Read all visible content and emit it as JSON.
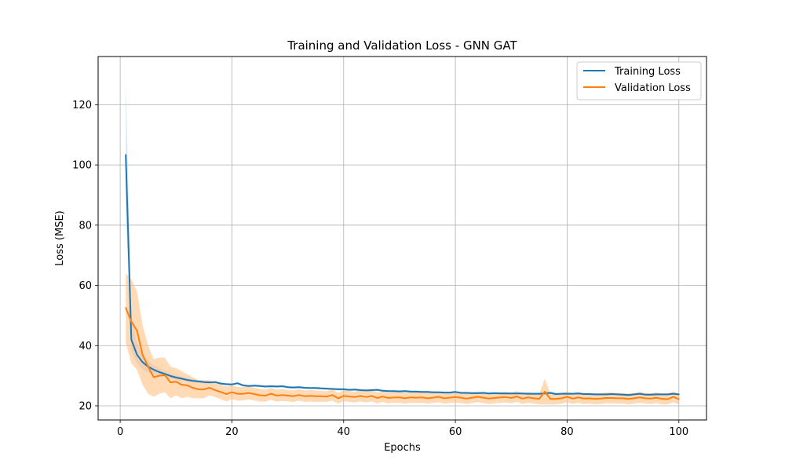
{
  "chart_data": {
    "type": "line",
    "title": "Training and Validation Loss - GNN GAT",
    "xlabel": "Epochs",
    "ylabel": "Loss (MSE)",
    "xlim": [
      -3.95,
      104.95
    ],
    "ylim": [
      15.3,
      136.0
    ],
    "xticks": [
      0,
      20,
      40,
      60,
      80,
      100
    ],
    "yticks": [
      20,
      40,
      60,
      80,
      100,
      120
    ],
    "xtick_labels": [
      "0",
      "20",
      "40",
      "60",
      "80",
      "100"
    ],
    "ytick_labels": [
      "20",
      "40",
      "60",
      "80",
      "100",
      "120"
    ],
    "grid": true,
    "legend": {
      "placement": "top-right",
      "entries": [
        "Training Loss",
        "Validation Loss"
      ]
    },
    "x": [
      1,
      2,
      3,
      4,
      5,
      6,
      7,
      8,
      9,
      10,
      11,
      12,
      13,
      14,
      15,
      16,
      17,
      18,
      19,
      20,
      21,
      22,
      23,
      24,
      25,
      26,
      27,
      28,
      29,
      30,
      31,
      32,
      33,
      34,
      35,
      36,
      37,
      38,
      39,
      40,
      41,
      42,
      43,
      44,
      45,
      46,
      47,
      48,
      49,
      50,
      51,
      52,
      53,
      54,
      55,
      56,
      57,
      58,
      59,
      60,
      61,
      62,
      63,
      64,
      65,
      66,
      67,
      68,
      69,
      70,
      71,
      72,
      73,
      74,
      75,
      76,
      77,
      78,
      79,
      80,
      81,
      82,
      83,
      84,
      85,
      86,
      87,
      88,
      89,
      90,
      91,
      92,
      93,
      94,
      95,
      96,
      97,
      98,
      99,
      100
    ],
    "series": [
      {
        "name": "Training Loss",
        "color": "#1f77b4",
        "band_color": "#aec7e8",
        "values": [
          103.3,
          42.0,
          37.0,
          34.5,
          33.0,
          32.0,
          31.2,
          30.6,
          29.9,
          29.4,
          29.0,
          28.6,
          28.3,
          28.1,
          27.9,
          27.8,
          27.9,
          27.4,
          27.2,
          27.1,
          27.5,
          26.8,
          26.6,
          26.7,
          26.6,
          26.4,
          26.5,
          26.4,
          26.5,
          26.2,
          26.1,
          26.2,
          26.0,
          25.9,
          25.9,
          25.8,
          25.7,
          25.6,
          25.5,
          25.5,
          25.3,
          25.4,
          25.2,
          25.1,
          25.2,
          25.3,
          25.0,
          24.9,
          24.9,
          24.8,
          24.9,
          24.7,
          24.7,
          24.6,
          24.6,
          24.5,
          24.5,
          24.4,
          24.4,
          24.6,
          24.3,
          24.3,
          24.2,
          24.2,
          24.3,
          24.1,
          24.2,
          24.1,
          24.1,
          24.1,
          24.1,
          24.1,
          24.0,
          24.0,
          24.0,
          24.1,
          24.3,
          23.9,
          24.0,
          24.0,
          24.0,
          24.1,
          23.9,
          23.9,
          23.8,
          23.8,
          23.8,
          23.9,
          23.8,
          23.7,
          23.6,
          23.8,
          24.0,
          23.7,
          23.7,
          23.8,
          23.8,
          23.8,
          24.0,
          23.8
        ],
        "band_upper": [
          128.0,
          50.0,
          41.0,
          37.0,
          35.0,
          33.5,
          32.5,
          31.6,
          30.8,
          30.2,
          29.7,
          29.2,
          28.9,
          28.6,
          28.4,
          28.2,
          28.3,
          27.8,
          27.6,
          27.5,
          27.9,
          27.2,
          27.0,
          27.1,
          27.0,
          26.8,
          26.9,
          26.8,
          26.9,
          26.6,
          26.5,
          26.6,
          26.4,
          26.3,
          26.3,
          26.2,
          26.1,
          26.0,
          25.9,
          25.9,
          25.7,
          25.8,
          25.6,
          25.5,
          25.6,
          25.7,
          25.4,
          25.3,
          25.3,
          25.2,
          25.3,
          25.1,
          25.1,
          25.0,
          25.0,
          24.9,
          24.9,
          24.8,
          24.8,
          25.0,
          24.7,
          24.7,
          24.6,
          24.6,
          24.7,
          24.5,
          24.6,
          24.5,
          24.5,
          24.5,
          24.5,
          24.5,
          24.4,
          24.4,
          24.4,
          24.5,
          24.7,
          24.3,
          24.4,
          24.4,
          24.4,
          24.5,
          24.3,
          24.3,
          24.2,
          24.2,
          24.2,
          24.3,
          24.2,
          24.1,
          24.0,
          24.2,
          24.4,
          24.1,
          24.1,
          24.2,
          24.2,
          24.2,
          24.4,
          24.2
        ],
        "band_lower": [
          85.0,
          38.0,
          34.0,
          32.0,
          31.0,
          30.5,
          29.9,
          29.5,
          29.0,
          28.6,
          28.3,
          28.0,
          27.7,
          27.6,
          27.4,
          27.4,
          27.5,
          27.0,
          26.8,
          26.7,
          27.1,
          26.4,
          26.2,
          26.3,
          26.2,
          26.0,
          26.1,
          26.0,
          26.1,
          25.8,
          25.7,
          25.8,
          25.6,
          25.5,
          25.5,
          25.4,
          25.3,
          25.2,
          25.1,
          25.1,
          24.9,
          25.0,
          24.8,
          24.7,
          24.8,
          24.9,
          24.6,
          24.5,
          24.5,
          24.4,
          24.5,
          24.3,
          24.3,
          24.2,
          24.2,
          24.1,
          24.1,
          24.0,
          24.0,
          24.2,
          23.9,
          23.9,
          23.8,
          23.8,
          23.9,
          23.7,
          23.8,
          23.7,
          23.7,
          23.7,
          23.7,
          23.7,
          23.6,
          23.6,
          23.6,
          23.7,
          23.9,
          23.5,
          23.6,
          23.6,
          23.6,
          23.7,
          23.5,
          23.5,
          23.4,
          23.4,
          23.4,
          23.5,
          23.4,
          23.3,
          23.2,
          23.4,
          23.6,
          23.3,
          23.3,
          23.4,
          23.4,
          23.4,
          23.6,
          23.4
        ]
      },
      {
        "name": "Validation Loss",
        "color": "#ff7f0e",
        "band_color": "#ffbb78",
        "values": [
          52.5,
          48.0,
          45.0,
          37.0,
          33.0,
          29.5,
          30.0,
          30.2,
          27.8,
          28.0,
          27.0,
          26.8,
          26.0,
          25.5,
          25.5,
          26.0,
          25.2,
          24.6,
          23.9,
          24.5,
          24.0,
          24.0,
          24.3,
          23.9,
          23.5,
          23.4,
          24.0,
          23.4,
          23.6,
          23.4,
          23.2,
          23.6,
          23.2,
          23.3,
          23.2,
          23.2,
          23.1,
          23.6,
          22.5,
          23.3,
          23.1,
          22.9,
          23.3,
          22.9,
          23.3,
          22.6,
          23.1,
          22.6,
          22.8,
          22.8,
          22.5,
          22.8,
          22.7,
          22.8,
          22.5,
          22.7,
          23.0,
          22.5,
          22.7,
          22.9,
          22.7,
          22.4,
          22.7,
          23.0,
          22.7,
          22.4,
          22.6,
          22.8,
          22.9,
          22.6,
          23.1,
          22.4,
          22.8,
          22.5,
          22.3,
          24.7,
          22.3,
          22.3,
          22.5,
          23.0,
          22.4,
          22.8,
          22.4,
          22.5,
          22.3,
          22.4,
          22.6,
          22.6,
          22.5,
          22.5,
          22.3,
          22.5,
          22.8,
          22.5,
          22.4,
          22.7,
          22.3,
          22.2,
          23.0,
          22.2
        ],
        "band_upper": [
          64.0,
          62.0,
          58.0,
          47.0,
          40.0,
          35.5,
          36.0,
          36.0,
          33.0,
          32.5,
          31.5,
          30.5,
          29.5,
          28.5,
          28.5,
          28.5,
          27.5,
          27.0,
          26.3,
          26.8,
          26.3,
          26.2,
          26.5,
          26.0,
          25.6,
          25.4,
          26.0,
          25.4,
          25.6,
          25.3,
          25.1,
          25.5,
          25.1,
          25.2,
          25.1,
          25.0,
          24.9,
          25.4,
          24.3,
          25.1,
          24.9,
          24.7,
          25.1,
          24.7,
          25.1,
          24.4,
          24.9,
          24.4,
          24.6,
          24.6,
          24.3,
          24.6,
          24.5,
          24.6,
          24.3,
          24.5,
          24.8,
          24.3,
          24.5,
          24.7,
          24.5,
          24.2,
          24.5,
          24.8,
          24.5,
          24.2,
          24.4,
          24.6,
          24.7,
          24.4,
          24.9,
          24.2,
          24.6,
          24.3,
          24.1,
          29.0,
          24.1,
          24.1,
          24.3,
          24.8,
          24.2,
          24.6,
          24.2,
          24.3,
          24.1,
          24.2,
          24.4,
          24.4,
          24.3,
          24.3,
          24.1,
          24.3,
          24.6,
          24.3,
          24.2,
          24.5,
          24.1,
          24.0,
          24.8,
          24.0
        ],
        "band_lower": [
          41.0,
          34.0,
          32.0,
          27.0,
          24.0,
          23.0,
          24.0,
          24.5,
          22.5,
          23.5,
          22.5,
          23.0,
          22.5,
          22.5,
          22.5,
          23.5,
          22.9,
          22.2,
          21.5,
          22.2,
          21.7,
          21.8,
          22.1,
          21.8,
          21.4,
          21.4,
          22.0,
          21.4,
          21.6,
          21.5,
          21.3,
          21.7,
          21.3,
          21.4,
          21.3,
          21.4,
          21.3,
          21.8,
          20.7,
          21.5,
          21.3,
          21.1,
          21.5,
          21.1,
          21.5,
          20.8,
          21.3,
          20.8,
          21.0,
          21.0,
          20.7,
          21.0,
          20.9,
          21.0,
          20.7,
          20.9,
          21.2,
          20.7,
          20.9,
          21.1,
          20.9,
          20.6,
          20.9,
          21.2,
          20.9,
          20.6,
          20.8,
          21.0,
          21.1,
          20.8,
          21.3,
          20.6,
          21.0,
          20.7,
          20.5,
          20.4,
          20.5,
          20.5,
          20.7,
          21.2,
          20.6,
          21.0,
          20.6,
          20.7,
          20.5,
          20.6,
          20.8,
          20.8,
          20.7,
          20.7,
          20.5,
          20.7,
          21.0,
          20.7,
          20.6,
          20.9,
          20.5,
          20.4,
          21.2,
          20.4
        ]
      }
    ]
  }
}
